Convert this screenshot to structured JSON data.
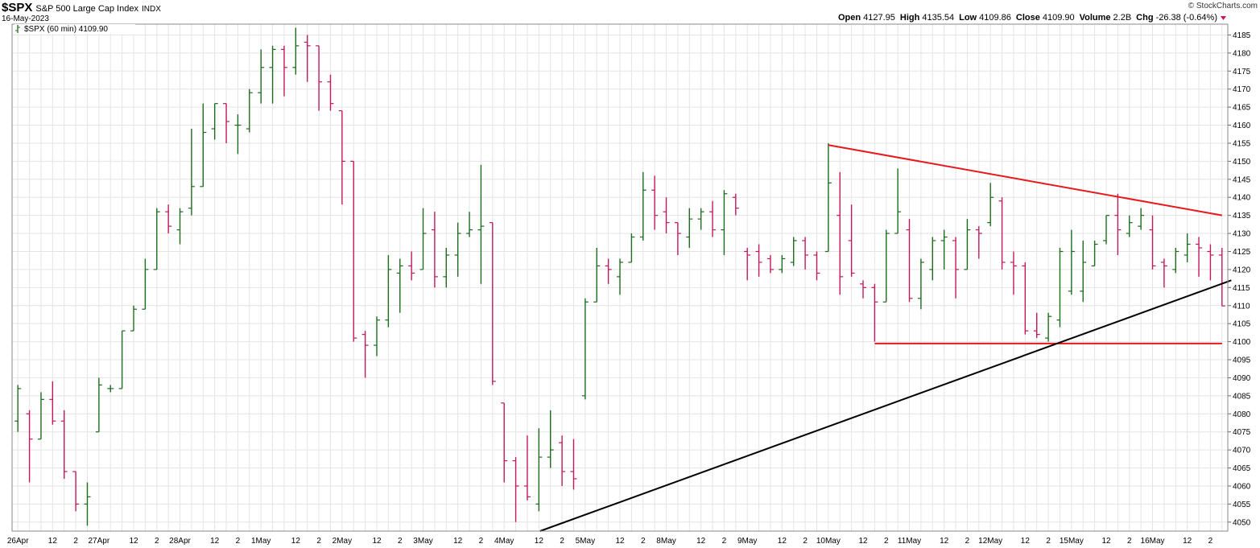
{
  "chart_data": {
    "type": "ohlc",
    "title": "$SPX",
    "subtitle": "S&P 500 Large Cap Index",
    "exchange": "INDX",
    "date": "16-May-2023",
    "source": "© StockCharts.com",
    "readout": [
      {
        "label": "Open",
        "value": "4127.95"
      },
      {
        "label": "High",
        "value": "4135.54"
      },
      {
        "label": "Low",
        "value": "4109.86"
      },
      {
        "label": "Close",
        "value": "4109.90"
      },
      {
        "label": "Volume",
        "value": "2.2B"
      },
      {
        "label": "Chg",
        "value": "-26.38 (-0.64%)"
      }
    ],
    "legend_label": "$SPX (60 min) 4109.90",
    "categories": [
      "26Apr",
      null,
      null,
      "12",
      null,
      "2",
      null,
      "27Apr",
      null,
      null,
      "12",
      null,
      "2",
      null,
      "28Apr",
      null,
      null,
      "12",
      null,
      "2",
      null,
      "1May",
      null,
      null,
      "12",
      null,
      "2",
      null,
      "2May",
      null,
      null,
      "12",
      null,
      "2",
      null,
      "3May",
      null,
      null,
      "12",
      null,
      "2",
      null,
      "4May",
      null,
      null,
      "12",
      null,
      "2",
      null,
      "5May",
      null,
      null,
      "12",
      null,
      "2",
      null,
      "8May",
      null,
      null,
      "12",
      null,
      "2",
      null,
      "9May",
      null,
      null,
      "12",
      null,
      "2",
      null,
      "10May",
      null,
      null,
      "12",
      null,
      "2",
      null,
      "11May",
      null,
      null,
      "12",
      null,
      "2",
      null,
      "12May",
      null,
      null,
      "12",
      null,
      "2",
      null,
      "15May",
      null,
      null,
      "12",
      null,
      "2",
      null,
      "16May",
      null,
      null,
      "12",
      null,
      "2",
      null
    ],
    "open": [
      4078,
      4080,
      4073,
      4084,
      4078,
      4064,
      4055,
      4075,
      4087,
      4087,
      4103,
      4109,
      4120,
      4136,
      4131,
      4137,
      4143,
      4159,
      4166,
      4160,
      4159,
      4169,
      4176,
      4181,
      4176,
      4183,
      4182,
      4172,
      4164,
      4150,
      4102,
      4099,
      4106,
      4119,
      4121,
      4120,
      4131,
      4118,
      4124,
      4130,
      4131,
      4133,
      4083,
      4067,
      4060,
      4055,
      4068,
      4072,
      4064,
      4085,
      4111,
      4121,
      4118,
      4122,
      4129,
      4142,
      4136,
      4133,
      4129,
      4134,
      4136,
      4131,
      4140,
      4125,
      4125,
      4123,
      4120,
      4122,
      4128,
      4124,
      4125,
      4135,
      4128,
      4116,
      4115,
      4111,
      4130,
      4131,
      4112,
      4120,
      4128,
      4128,
      4120,
      4131,
      4133,
      4139,
      4122,
      4121,
      4103,
      4101,
      4106,
      4114,
      4114,
      4121,
      4128,
      4135,
      4130,
      4132,
      4131,
      4122,
      4120,
      4124,
      4127,
      4125,
      4124
    ],
    "high": [
      4088,
      4081,
      4086,
      4089,
      4081,
      4064,
      4061,
      4090,
      4088,
      4103,
      4110,
      4123,
      4137,
      4138,
      4137,
      4159,
      4166,
      4166,
      4166,
      4163,
      4170,
      4181,
      4182,
      4182,
      4187,
      4185,
      4182,
      4174,
      4164,
      4150,
      4103,
      4107,
      4124,
      4123,
      4125,
      4137,
      4136,
      4126,
      4133,
      4136,
      4149,
      4133,
      4083,
      4068,
      4074,
      4076,
      4081,
      4074,
      4073,
      4112,
      4126,
      4123,
      4123,
      4130,
      4147,
      4146,
      4140,
      4133,
      4137,
      4137,
      4139,
      4142,
      4141,
      4126,
      4127,
      4124,
      4124,
      4129,
      4129,
      4125,
      4155,
      4147,
      4138,
      4117,
      4116,
      4131,
      4148,
      4134,
      4123,
      4129,
      4131,
      4129,
      4134,
      4132,
      4144,
      4140,
      4125,
      4122,
      4108,
      4108,
      4126,
      4131,
      4128,
      4128,
      4135,
      4141,
      4135,
      4137,
      4135,
      4123,
      4126,
      4130,
      4129,
      4127,
      4126
    ],
    "low": [
      4075,
      4061,
      4073,
      4077,
      4062,
      4053,
      4049,
      4075,
      4086,
      4087,
      4103,
      4109,
      4120,
      4130,
      4127,
      4135,
      4143,
      4156,
      4155,
      4152,
      4158,
      4166,
      4166,
      4168,
      4174,
      4172,
      4164,
      4164,
      4138,
      4100,
      4090,
      4096,
      4104,
      4108,
      4117,
      4120,
      4115,
      4115,
      4118,
      4129,
      4116,
      4088,
      4061,
      4050,
      4056,
      4053,
      4065,
      4060,
      4059,
      4084,
      4111,
      4116,
      4113,
      4122,
      4128,
      4131,
      4130,
      4124,
      4126,
      4131,
      4129,
      4124,
      4135,
      4117,
      4118,
      4119,
      4119,
      4121,
      4120,
      4117,
      4125,
      4113,
      4118,
      4112,
      4100,
      4111,
      4130,
      4111,
      4109,
      4117,
      4120,
      4112,
      4120,
      4123,
      4132,
      4120,
      4113,
      4102,
      4101,
      4100,
      4104,
      4113,
      4111,
      4121,
      4127,
      4124,
      4129,
      4131,
      4120,
      4115,
      4119,
      4122,
      4118,
      4117,
      4109.86
    ],
    "close": [
      4087,
      4073,
      4084,
      4078,
      4064,
      4055,
      4057,
      4088,
      4087,
      4103,
      4109,
      4120,
      4136,
      4132,
      4136,
      4143,
      4158,
      4166,
      4161,
      4160,
      4169,
      4176,
      4181,
      4176,
      4182,
      4182,
      4172,
      4166,
      4150,
      4101,
      4099,
      4106,
      4120,
      4121,
      4119,
      4130,
      4118,
      4124,
      4130,
      4131,
      4132,
      4089,
      4067,
      4060,
      4057,
      4068,
      4070,
      4064,
      4062,
      4111,
      4121,
      4120,
      4122,
      4129,
      4142,
      4135,
      4133,
      4130,
      4134,
      4136,
      4131,
      4141,
      4137,
      4124,
      4122,
      4120,
      4123,
      4128,
      4124,
      4119,
      4144,
      4118,
      4119,
      4115,
      4111,
      4130,
      4136,
      4112,
      4122,
      4128,
      4129,
      4120,
      4131,
      4130,
      4140,
      4122,
      4121,
      4103,
      4102,
      4107,
      4125,
      4125,
      4122,
      4127,
      4135,
      4131,
      4133,
      4135,
      4121,
      4121,
      4125,
      4127,
      4126,
      4124,
      4109.9
    ],
    "up_color": "#1e6b1e",
    "down_color": "#c2185b",
    "ylim": [
      4047.5,
      4188
    ],
    "yticks": [
      4050,
      4055,
      4060,
      4065,
      4070,
      4075,
      4080,
      4085,
      4090,
      4095,
      4100,
      4105,
      4110,
      4115,
      4120,
      4125,
      4130,
      4135,
      4140,
      4145,
      4150,
      4155,
      4160,
      4165,
      4170,
      4175,
      4180,
      4185
    ],
    "grid": true,
    "trendlines": [
      {
        "color": "#e8191c",
        "x": [
          70,
          104
        ],
        "y": [
          4154.5,
          4135
        ]
      },
      {
        "color": "#e8191c",
        "x": [
          74,
          104
        ],
        "y": [
          4099.5,
          4099.5
        ]
      },
      {
        "color": "#000000",
        "x": [
          45.1,
          104.8
        ],
        "y": [
          4047.5,
          4117
        ]
      }
    ]
  }
}
